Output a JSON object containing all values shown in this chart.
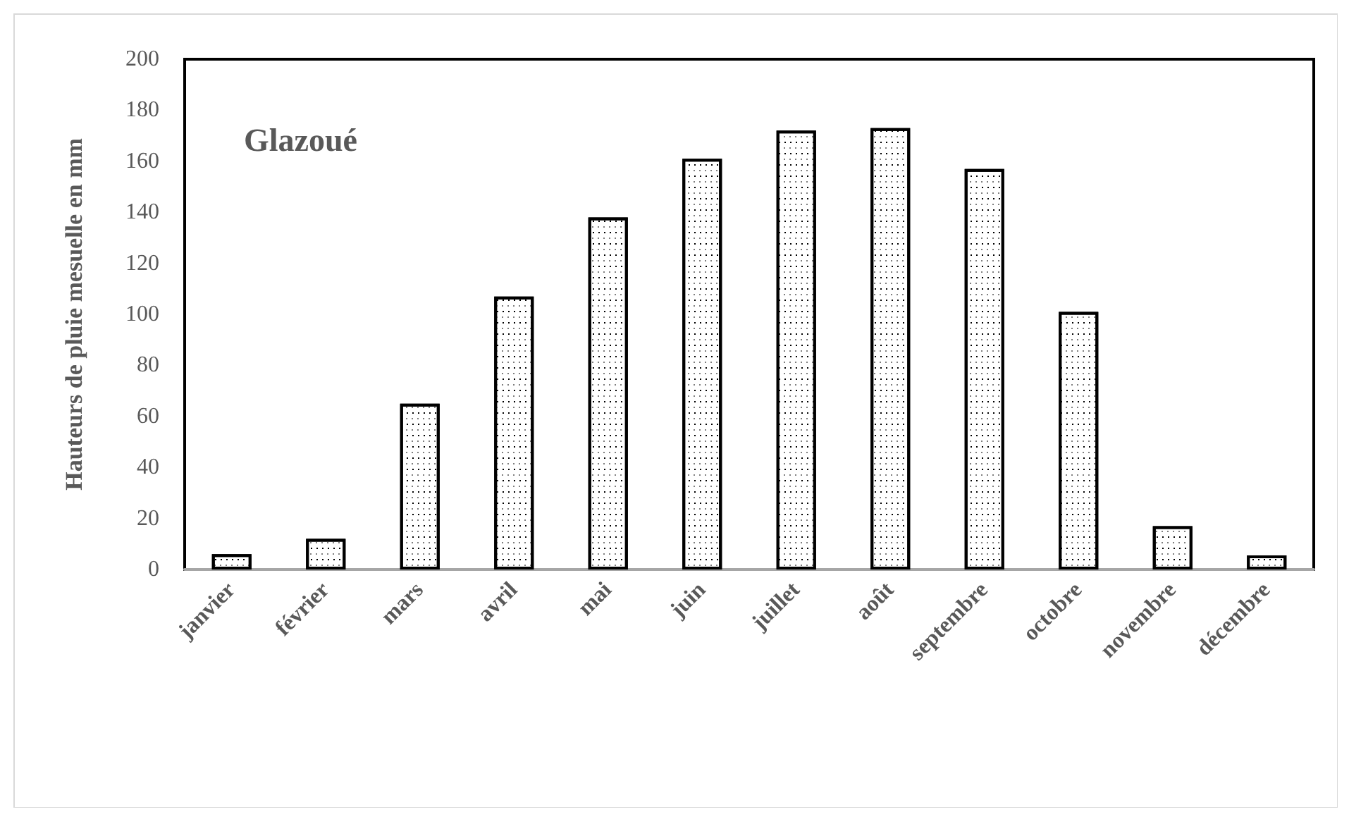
{
  "chart_data": {
    "type": "bar",
    "ylabel": "Hauteurs de pluie mesuelle en mm",
    "annotations": [
      "Glazoué"
    ],
    "categories": [
      "janvier",
      "février",
      "mars",
      "avril",
      "mai",
      "juin",
      "juillet",
      "août",
      "septembre",
      "octobre",
      "novembre",
      "décembre"
    ],
    "values": [
      6,
      12,
      65,
      107,
      138,
      161,
      172,
      173,
      157,
      101,
      17,
      5.5
    ],
    "color": "#ffffff",
    "ylim": [
      0,
      200
    ],
    "yticks": [
      0,
      20,
      40,
      60,
      80,
      100,
      120,
      140,
      160,
      180,
      200
    ],
    "grid": false
  }
}
